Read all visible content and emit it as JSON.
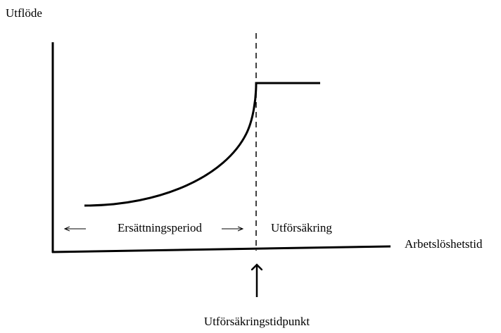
{
  "labels": {
    "y_axis": "Utflöde",
    "x_axis": "Arbetslöshetstid",
    "period": "Ersättningsperiod",
    "after": "Utförsäkring",
    "event": "Utförsäkringstidpunkt"
  }
}
